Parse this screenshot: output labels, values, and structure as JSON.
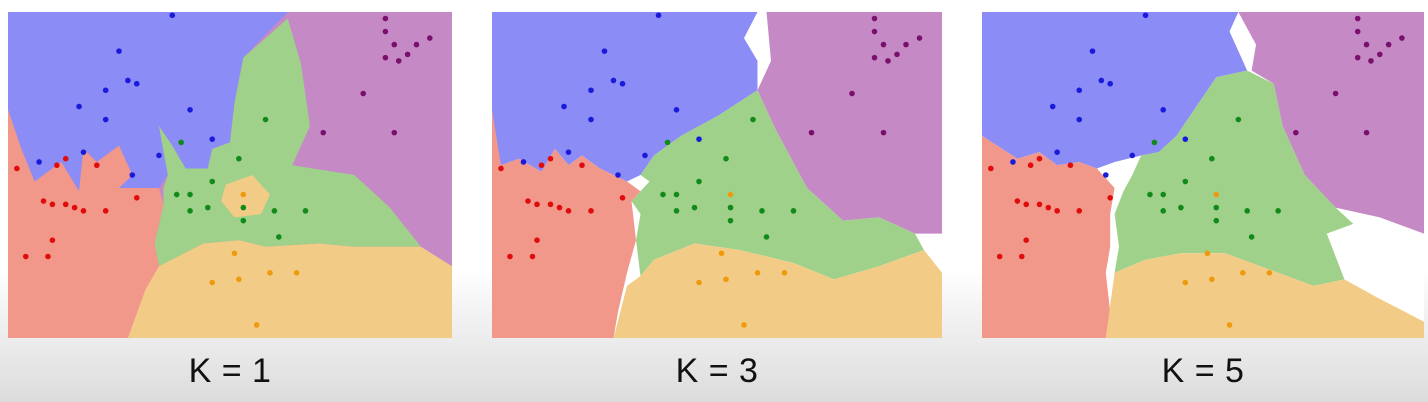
{
  "colors": {
    "blue_region": "#8b8cf6",
    "purple_region": "#c58ac6",
    "green_region": "#9fd18a",
    "red_region": "#f2988a",
    "orange_region": "#f2cc86",
    "blue_point": "#1a1adb",
    "purple_point": "#7a0f6e",
    "green_point": "#118a1a",
    "red_point": "#e00c0c",
    "orange_point": "#ee9a0c"
  },
  "panels": [
    {
      "label": "K = 1"
    },
    {
      "label": "K = 3"
    },
    {
      "label": "K = 5"
    }
  ],
  "points": {
    "blue": [
      [
        0.37,
        0.01
      ],
      [
        0.25,
        0.12
      ],
      [
        0.27,
        0.21
      ],
      [
        0.22,
        0.24
      ],
      [
        0.29,
        0.22
      ],
      [
        0.16,
        0.29
      ],
      [
        0.22,
        0.33
      ],
      [
        0.41,
        0.3
      ],
      [
        0.17,
        0.43
      ],
      [
        0.07,
        0.46
      ],
      [
        0.34,
        0.44
      ],
      [
        0.28,
        0.5
      ],
      [
        0.46,
        0.39
      ]
    ],
    "purple": [
      [
        0.85,
        0.02
      ],
      [
        0.85,
        0.06
      ],
      [
        0.87,
        0.1
      ],
      [
        0.85,
        0.14
      ],
      [
        0.9,
        0.13
      ],
      [
        0.92,
        0.1
      ],
      [
        0.95,
        0.08
      ],
      [
        0.88,
        0.15
      ],
      [
        0.8,
        0.25
      ],
      [
        0.71,
        0.37
      ],
      [
        0.87,
        0.37
      ]
    ],
    "green": [
      [
        0.58,
        0.33
      ],
      [
        0.39,
        0.4
      ],
      [
        0.52,
        0.45
      ],
      [
        0.46,
        0.52
      ],
      [
        0.38,
        0.56
      ],
      [
        0.41,
        0.56
      ],
      [
        0.45,
        0.6
      ],
      [
        0.41,
        0.61
      ],
      [
        0.53,
        0.6
      ],
      [
        0.6,
        0.61
      ],
      [
        0.67,
        0.61
      ],
      [
        0.53,
        0.64
      ],
      [
        0.61,
        0.69
      ]
    ],
    "red": [
      [
        0.13,
        0.45
      ],
      [
        0.02,
        0.48
      ],
      [
        0.11,
        0.47
      ],
      [
        0.2,
        0.47
      ],
      [
        0.08,
        0.58
      ],
      [
        0.1,
        0.59
      ],
      [
        0.13,
        0.59
      ],
      [
        0.15,
        0.6
      ],
      [
        0.17,
        0.61
      ],
      [
        0.22,
        0.61
      ],
      [
        0.29,
        0.57
      ],
      [
        0.1,
        0.7
      ],
      [
        0.04,
        0.75
      ],
      [
        0.09,
        0.75
      ]
    ],
    "orange": [
      [
        0.53,
        0.56
      ],
      [
        0.51,
        0.74
      ],
      [
        0.52,
        0.82
      ],
      [
        0.59,
        0.8
      ],
      [
        0.65,
        0.8
      ],
      [
        0.46,
        0.83
      ],
      [
        0.56,
        0.96
      ]
    ]
  }
}
